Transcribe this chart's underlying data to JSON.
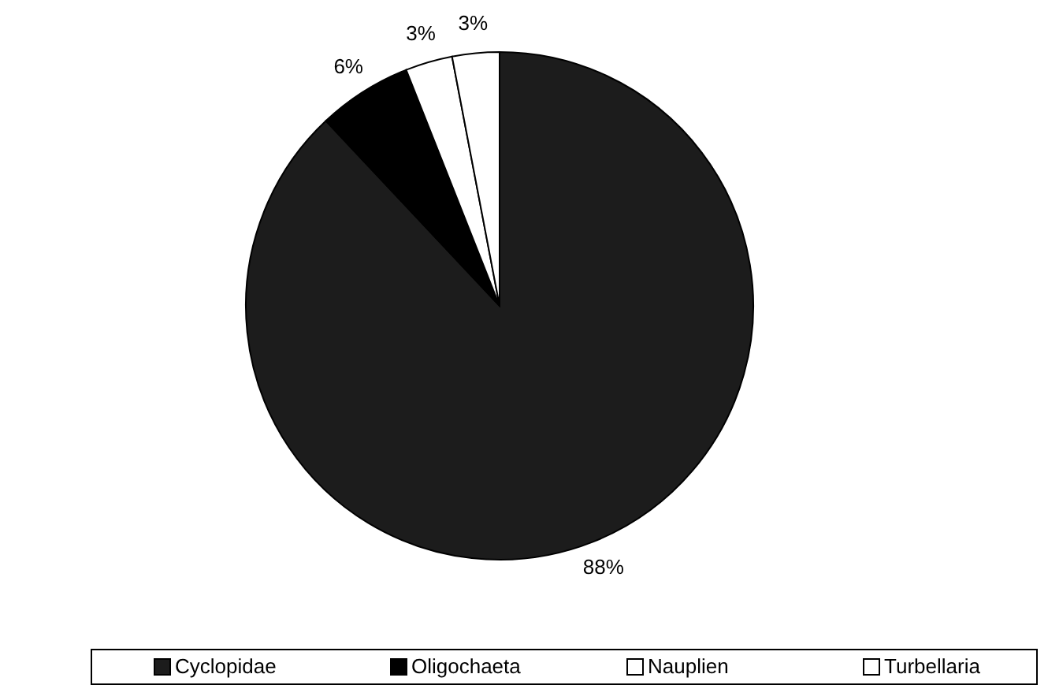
{
  "chart_data": {
    "type": "pie",
    "categories": [
      "Cyclopidae",
      "Oligochaeta",
      "Nauplien",
      "Turbellaria"
    ],
    "values": [
      88,
      6,
      3,
      3
    ],
    "colors": [
      "#1c1c1c",
      "#000000",
      "#ffffff",
      "#ffffff"
    ],
    "value_labels": [
      "88%",
      "6%",
      "3%",
      "3%"
    ],
    "legend": "bottom"
  }
}
